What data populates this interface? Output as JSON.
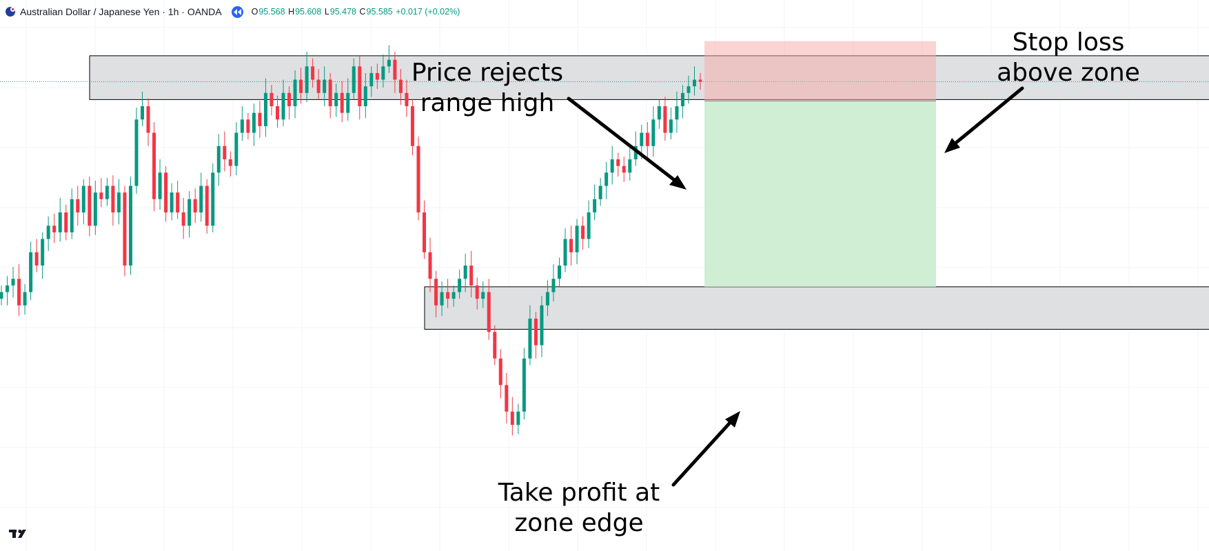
{
  "header": {
    "symbol": "Australian Dollar / Japanese Yen · 1h · OANDA",
    "open_label": "O",
    "open": "95.568",
    "high_label": "H",
    "high": "95.608",
    "low_label": "L",
    "low": "95.478",
    "close_label": "C",
    "close": "95.585",
    "change": "+0.017 (+0.02%)",
    "flag_icon": "australia-flag-icon",
    "replay_icon": "replay-icon"
  },
  "annotations": {
    "rejects_line1": "Price rejects",
    "rejects_line2": "range high",
    "stop_line1": "Stop loss",
    "stop_line2": "above zone",
    "take_line1": "Take profit at",
    "take_line2": "zone edge"
  },
  "colors": {
    "up": "#089981",
    "down": "#f23645",
    "zone_fill": "#dfe0e2",
    "stop_fill": "#f5aaa6",
    "profit_fill": "#cfeed3",
    "grid": "#f0f3fa",
    "arrow": "#000000"
  },
  "chart_data": {
    "type": "candlestick",
    "instrument": "Australian Dollar / Japanese Yen",
    "timeframe": "1h",
    "broker": "OANDA",
    "last_candle": {
      "open": 95.568,
      "high": 95.608,
      "low": 95.478,
      "close": 95.585
    },
    "y_range": [
      92.05,
      96.2
    ],
    "resistance_zone": {
      "top": 95.78,
      "bottom": 95.45
    },
    "support_zone": {
      "top": 94.04,
      "bottom": 93.72
    },
    "stop_loss_zone": {
      "top": 95.89,
      "bottom": 95.44
    },
    "take_profit_zone": {
      "top": 95.44,
      "bottom": 94.04
    },
    "closes": [
      94.0,
      94.05,
      94.1,
      93.9,
      94.0,
      94.3,
      94.2,
      94.4,
      94.5,
      94.45,
      94.6,
      94.45,
      94.7,
      94.6,
      94.8,
      94.5,
      94.75,
      94.7,
      94.8,
      94.6,
      94.75,
      94.2,
      94.8,
      95.3,
      95.4,
      95.2,
      94.7,
      94.9,
      94.6,
      94.75,
      94.6,
      94.5,
      94.7,
      94.6,
      94.8,
      94.5,
      94.9,
      95.1,
      95.0,
      94.95,
      95.2,
      95.3,
      95.2,
      95.35,
      95.25,
      95.5,
      95.4,
      95.3,
      95.5,
      95.4,
      95.6,
      95.5,
      95.7,
      95.6,
      95.5,
      95.6,
      95.4,
      95.5,
      95.35,
      95.5,
      95.7,
      95.4,
      95.55,
      95.65,
      95.6,
      95.7,
      95.75,
      95.6,
      95.5,
      95.4,
      95.1,
      94.6,
      94.3,
      94.1,
      93.9,
      94.0,
      93.95,
      94.0,
      94.1,
      94.2,
      94.05,
      93.95,
      94.0,
      93.7,
      93.5,
      93.3,
      93.1,
      93.0,
      93.1,
      93.5,
      93.8,
      93.6,
      93.9,
      94.0,
      94.1,
      94.2,
      94.4,
      94.3,
      94.5,
      94.4,
      94.6,
      94.7,
      94.8,
      94.9,
      95.0,
      94.95,
      94.9,
      95.0,
      95.1,
      95.2,
      95.1,
      95.3,
      95.4,
      95.2,
      95.3,
      95.4,
      95.5,
      95.55,
      95.6,
      95.585
    ]
  }
}
